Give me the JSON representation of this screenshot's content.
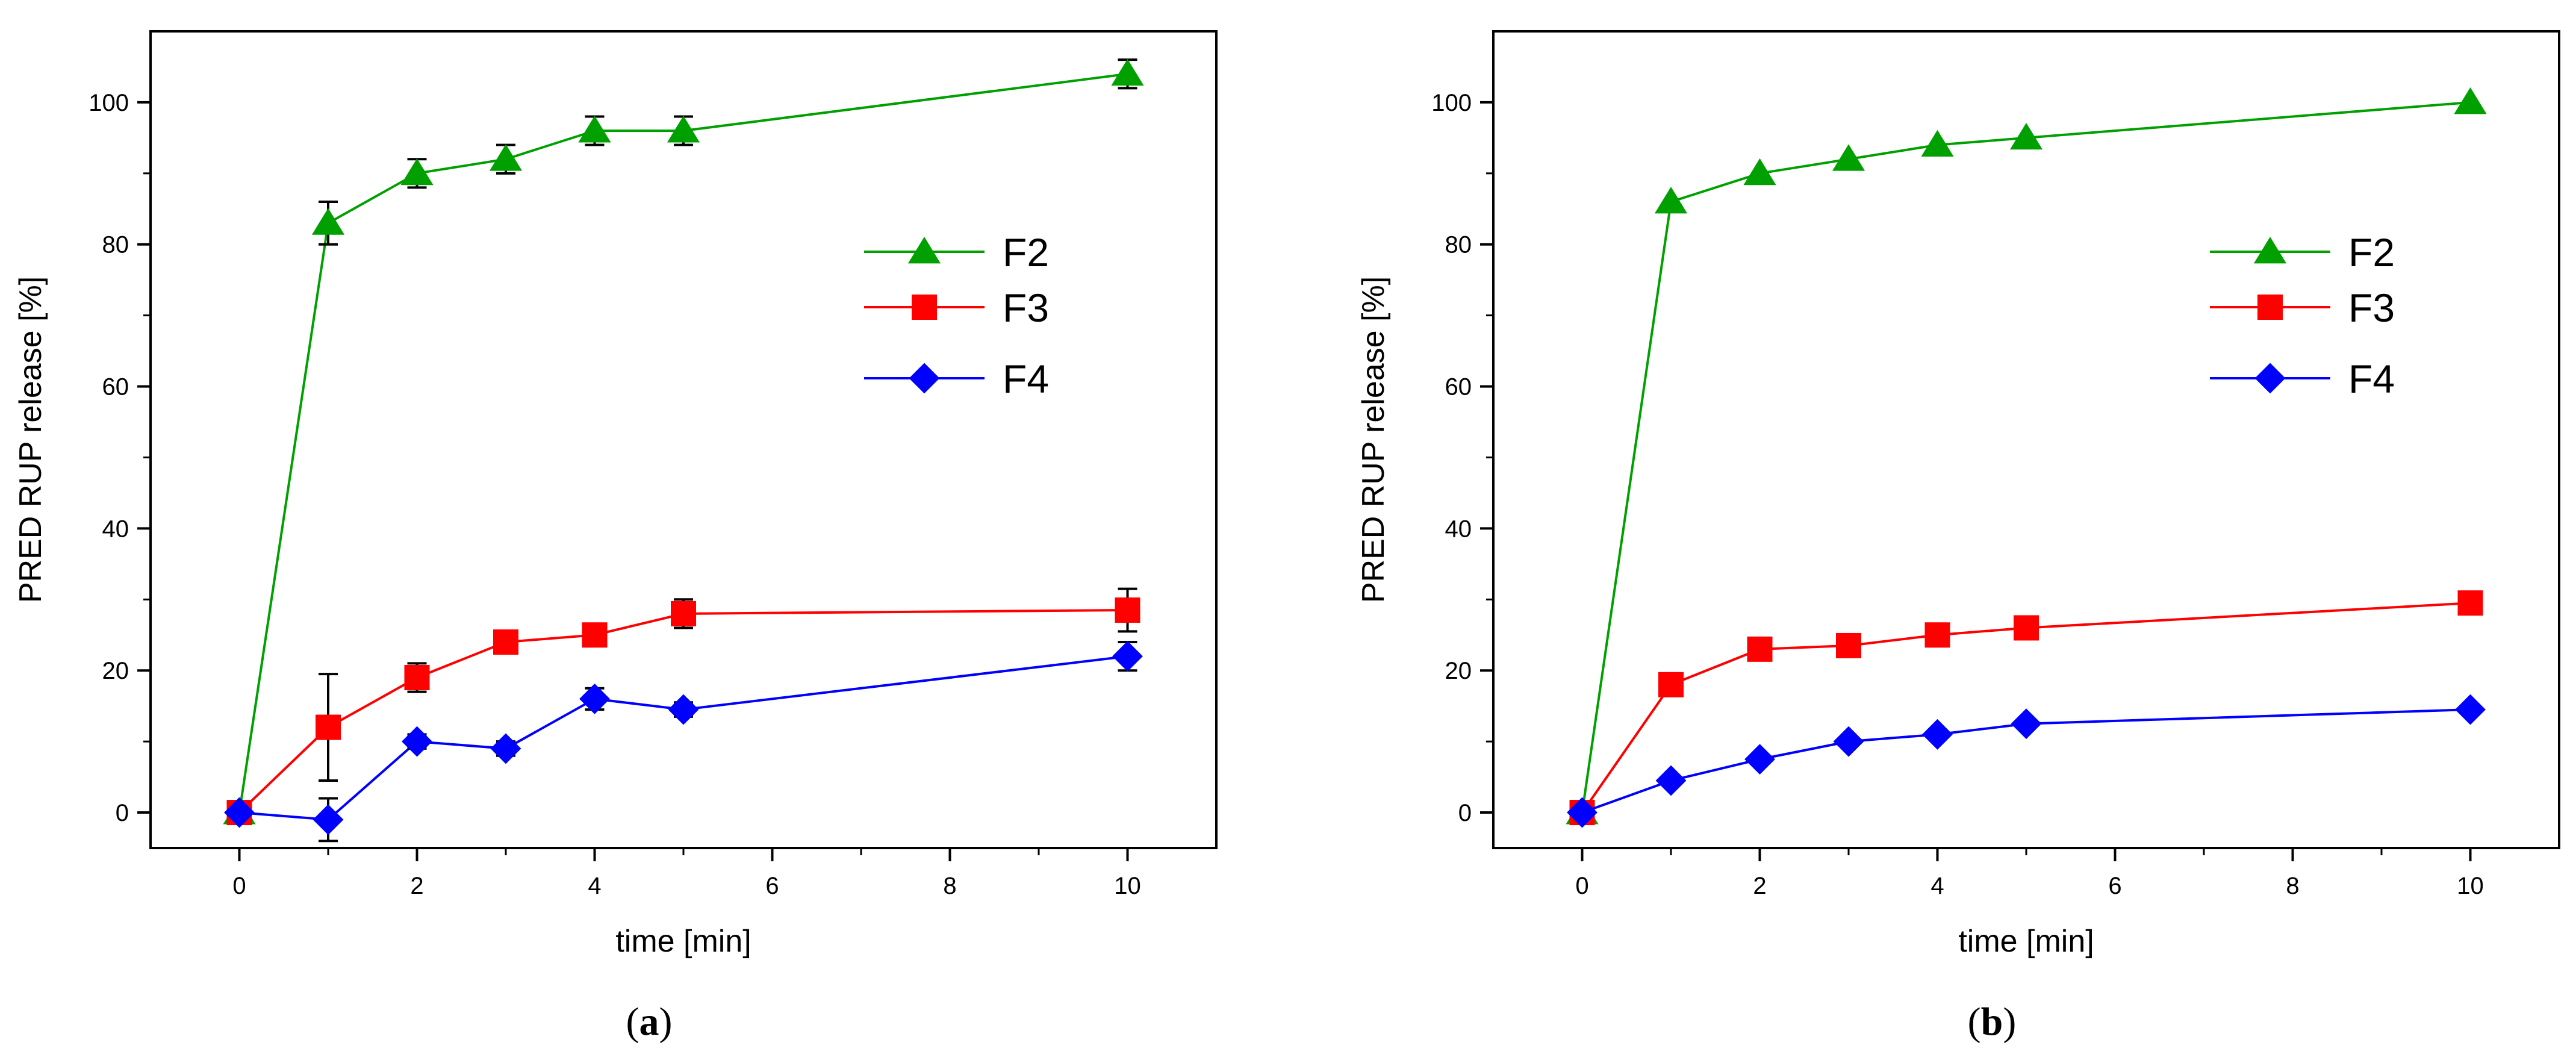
{
  "colors": {
    "F2": "#00a000",
    "F3": "#ff0000",
    "F4": "#0000ff",
    "axis": "#000000",
    "error": "#000000"
  },
  "chart_data": [
    {
      "type": "line",
      "panel": "a",
      "caption": {
        "open": "(",
        "letter": "a",
        "close": ")"
      },
      "xlabel": "time [min]",
      "ylabel": "PRED RUP release [%]",
      "xlim": [
        -1,
        11
      ],
      "ylim": [
        -5,
        110
      ],
      "xticks": [
        0,
        2,
        4,
        6,
        8,
        10
      ],
      "yticks": [
        0,
        20,
        40,
        60,
        80,
        100
      ],
      "legend_position": "center-right",
      "x": [
        0,
        1,
        2,
        3,
        4,
        5,
        10
      ],
      "series": [
        {
          "name": "F2",
          "marker": "triangle",
          "values": [
            0,
            83,
            90,
            92,
            96,
            96,
            104
          ],
          "errors": [
            0,
            3,
            2,
            2,
            2,
            2,
            2
          ]
        },
        {
          "name": "F3",
          "marker": "square",
          "values": [
            0,
            12,
            19,
            24,
            25,
            28,
            28.5
          ],
          "errors": [
            0,
            7.5,
            2,
            1,
            1,
            2,
            3
          ]
        },
        {
          "name": "F4",
          "marker": "diamond",
          "values": [
            0,
            -1,
            10,
            9,
            16,
            14.5,
            22
          ],
          "errors": [
            0,
            3,
            1,
            1,
            1.5,
            1,
            2
          ]
        }
      ]
    },
    {
      "type": "line",
      "panel": "b",
      "caption": {
        "open": "(",
        "letter": "b",
        "close": ")"
      },
      "xlabel": "time [min]",
      "ylabel": "PRED RUP release [%]",
      "xlim": [
        -1,
        11
      ],
      "ylim": [
        -5,
        110
      ],
      "xticks": [
        0,
        2,
        4,
        6,
        8,
        10
      ],
      "yticks": [
        0,
        20,
        40,
        60,
        80,
        100
      ],
      "legend_position": "center-right",
      "x": [
        0,
        1,
        2,
        3,
        4,
        5,
        10
      ],
      "series": [
        {
          "name": "F2",
          "marker": "triangle",
          "values": [
            0,
            86,
            90,
            92,
            94,
            95,
            100
          ],
          "errors": []
        },
        {
          "name": "F3",
          "marker": "square",
          "values": [
            0,
            18,
            23,
            23.5,
            25,
            26,
            29.5
          ],
          "errors": []
        },
        {
          "name": "F4",
          "marker": "diamond",
          "values": [
            0,
            4.5,
            7.5,
            10,
            11,
            12.5,
            14.5
          ],
          "errors": []
        }
      ]
    }
  ]
}
